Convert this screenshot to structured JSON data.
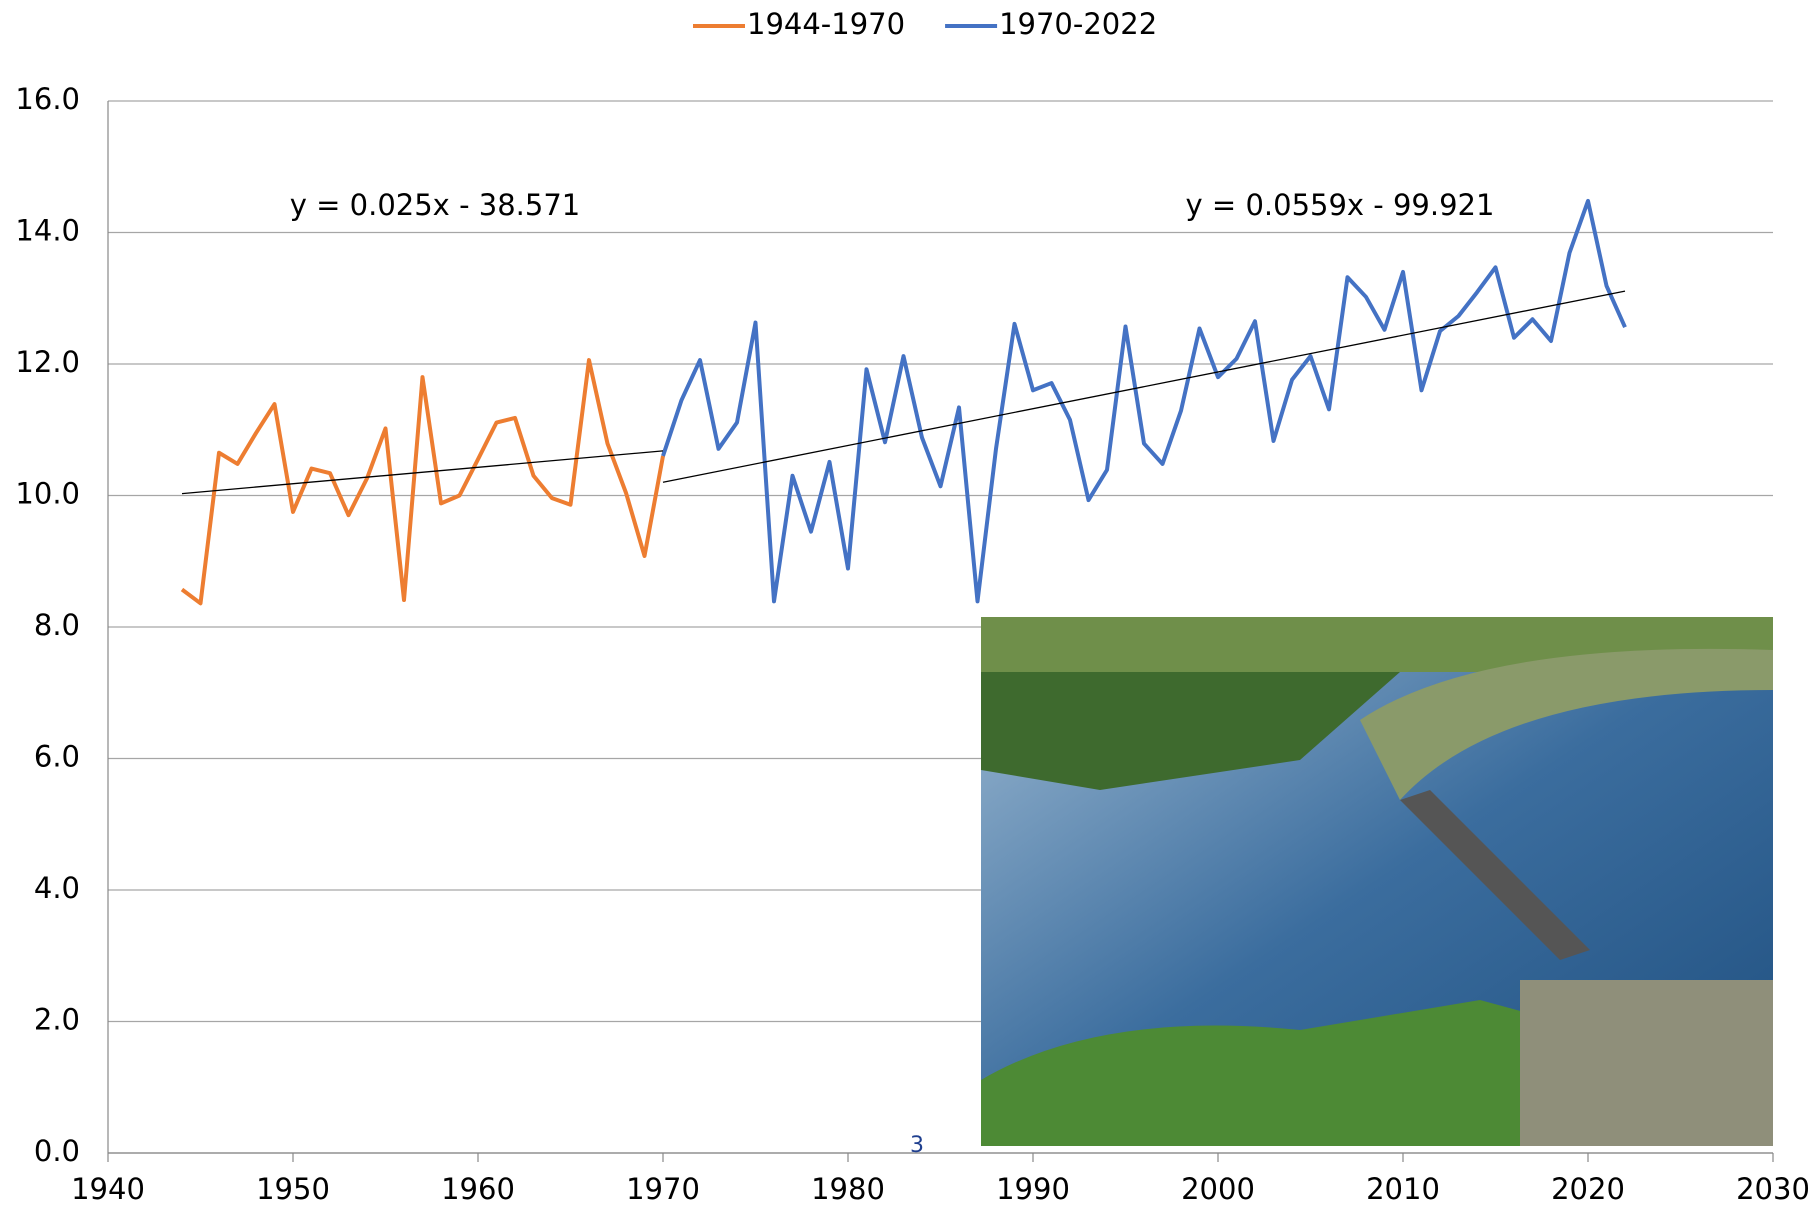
{
  "chart_data": {
    "type": "line",
    "x": [
      1944,
      1945,
      1946,
      1947,
      1948,
      1949,
      1950,
      1951,
      1952,
      1953,
      1954,
      1955,
      1956,
      1957,
      1958,
      1959,
      1960,
      1961,
      1962,
      1963,
      1964,
      1965,
      1966,
      1967,
      1968,
      1969,
      1970,
      1971,
      1972,
      1973,
      1974,
      1975,
      1976,
      1977,
      1978,
      1979,
      1980,
      1981,
      1982,
      1983,
      1984,
      1985,
      1986,
      1987,
      1988,
      1989,
      1990,
      1991,
      1992,
      1993,
      1994,
      1995,
      1996,
      1997,
      1998,
      1999,
      2000,
      2001,
      2002,
      2003,
      2004,
      2005,
      2006,
      2007,
      2008,
      2009,
      2010,
      2011,
      2012,
      2013,
      2014,
      2015,
      2016,
      2017,
      2018,
      2019,
      2020,
      2021,
      2022
    ],
    "series": [
      {
        "name": "1944-1970",
        "color": "#ed7d31",
        "values": [
          8.57,
          8.36,
          10.65,
          10.48,
          10.95,
          11.39,
          9.75,
          10.41,
          10.34,
          9.7,
          10.26,
          11.02,
          8.41,
          11.8,
          9.88,
          10.0,
          10.55,
          11.11,
          11.18,
          10.3,
          9.96,
          9.86,
          12.06,
          10.79,
          10.04,
          9.08,
          10.6,
          null,
          null,
          null,
          null,
          null,
          null,
          null,
          null,
          null,
          null,
          null,
          null,
          null,
          null,
          null,
          null,
          null,
          null,
          null,
          null,
          null,
          null,
          null,
          null,
          null,
          null,
          null,
          null,
          null,
          null,
          null,
          null,
          null,
          null,
          null,
          null,
          null,
          null,
          null,
          null,
          null,
          null,
          null,
          null,
          null,
          null,
          null,
          null,
          null,
          null,
          null,
          null
        ]
      },
      {
        "name": "1970-2022",
        "color": "#4472c4",
        "values": [
          null,
          null,
          null,
          null,
          null,
          null,
          null,
          null,
          null,
          null,
          null,
          null,
          null,
          null,
          null,
          null,
          null,
          null,
          null,
          null,
          null,
          null,
          null,
          null,
          null,
          null,
          10.6,
          11.45,
          12.06,
          10.71,
          11.11,
          12.63,
          8.39,
          10.3,
          9.45,
          10.51,
          8.89,
          11.92,
          10.81,
          12.12,
          10.88,
          10.14,
          11.34,
          8.39,
          10.71,
          12.61,
          11.6,
          11.71,
          11.15,
          9.93,
          10.39,
          12.57,
          10.79,
          10.48,
          11.29,
          12.54,
          11.8,
          12.08,
          12.65,
          10.83,
          11.76,
          12.12,
          11.31,
          13.32,
          13.02,
          12.52,
          13.4,
          11.6,
          12.5,
          12.73,
          13.09,
          13.47,
          12.4,
          12.68,
          12.35,
          13.69,
          14.48,
          13.19,
          12.56
        ]
      }
    ],
    "trendlines": [
      {
        "label": "y = 0.025x - 38.571",
        "slope": 0.025,
        "intercept": -38.571,
        "x": [
          1944,
          1970
        ],
        "color": "#000000"
      },
      {
        "label": "y = 0.0559x - 99.921",
        "slope": 0.0559,
        "intercept": -99.921,
        "x": [
          1970,
          2022
        ],
        "color": "#000000"
      }
    ],
    "xlim": [
      1940,
      2030
    ],
    "xticks": [
      1940,
      1950,
      1960,
      1970,
      1980,
      1990,
      2000,
      2010,
      2020,
      2030
    ],
    "ylim": [
      0,
      16
    ],
    "yticks": [
      {
        "value": 0,
        "label": "0.0"
      },
      {
        "value": 2,
        "label": "2.0"
      },
      {
        "value": 4,
        "label": "4.0"
      },
      {
        "value": 6,
        "label": "6.0"
      },
      {
        "value": 8,
        "label": "8.0"
      },
      {
        "value": 10,
        "label": "10.0"
      },
      {
        "value": 12,
        "label": "12.0"
      },
      {
        "value": 14,
        "label": "14.0"
      },
      {
        "value": 16,
        "label": "16.0"
      }
    ],
    "grid": true,
    "legend": "top",
    "page_number": "3"
  }
}
